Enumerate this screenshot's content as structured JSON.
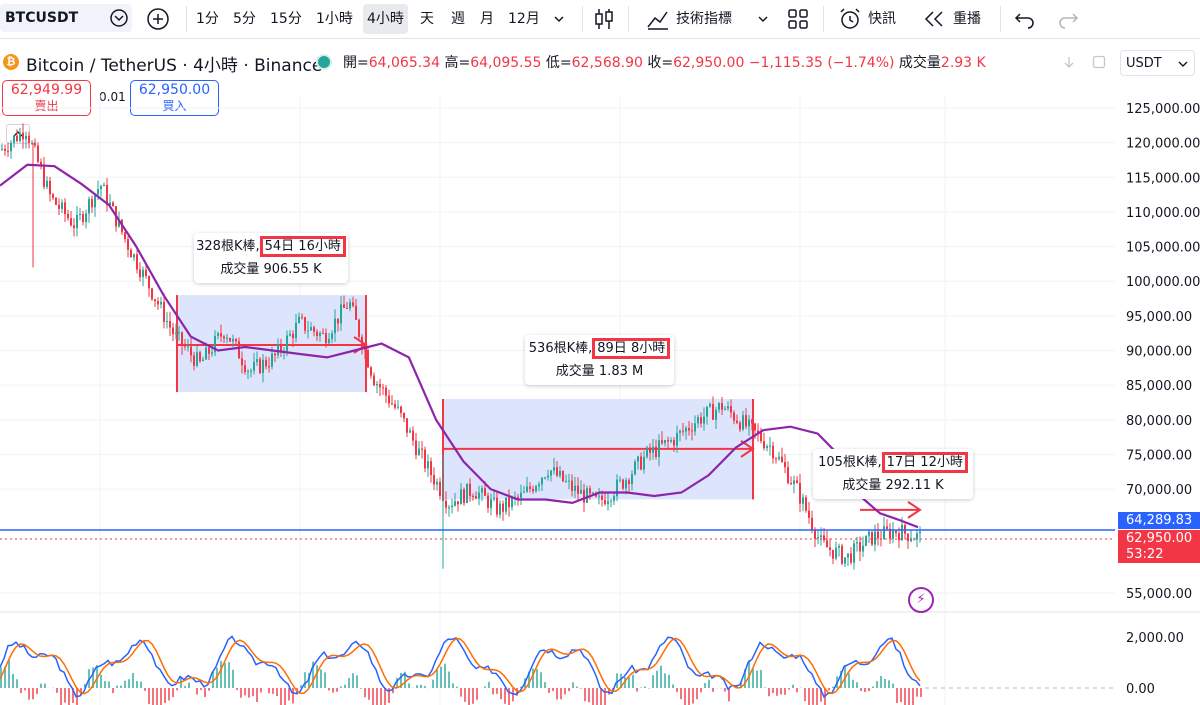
{
  "toolbar": {
    "symbol": "BTCUSDT",
    "intervals": [
      "1分",
      "5分",
      "15分",
      "1小時",
      "4小時",
      "天",
      "週",
      "月",
      "12月"
    ],
    "active_interval": "4小時",
    "indicators_label": "技術指標",
    "alert_label": "快訊",
    "replay_label": "重播"
  },
  "legend": {
    "title": "Bitcoin / TetherUS · 4小時 · Binance",
    "open_label": "開",
    "open": "64,065.34",
    "high_label": "高",
    "high": "64,095.55",
    "low_label": "低",
    "low": "62,568.90",
    "close_label": "收",
    "close": "62,950.00",
    "change": "−1,115.35 (−1.74%)",
    "volume_label": "成交量",
    "volume": "2.93 K"
  },
  "trade": {
    "sell_price": "62,949.99",
    "sell_label": "賣出",
    "spread": "0.01",
    "buy_price": "62,950.00",
    "buy_label": "買入"
  },
  "currency": "USDT",
  "price_tags": {
    "blue_line": "64,289.83",
    "last": "62,950.00",
    "countdown": "53:22"
  },
  "annotations": [
    {
      "bars_label": "328根K棒,",
      "duration": "54日 16小時",
      "volume": "成交量 906.55 K"
    },
    {
      "bars_label": "536根K棒,",
      "duration": "89日 8小時",
      "volume": "成交量 1.83 M"
    },
    {
      "bars_label": "105根K棒,",
      "duration": "17日 12小時",
      "volume": "成交量 292.11 K"
    }
  ],
  "colors": {
    "up": "#26a69a",
    "down": "#f23645",
    "ma": "#8e24aa",
    "range": "#d7e0fb",
    "blue_line": "#2962ff"
  },
  "chart_data": {
    "type": "line",
    "title": "Bitcoin / TetherUS · 4小時 · Binance",
    "y_ticks": [
      "125,000.00",
      "120,000.00",
      "115,000.00",
      "110,000.00",
      "105,000.00",
      "100,000.00",
      "95,000.00",
      "90,000.00",
      "85,000.00",
      "80,000.00",
      "75,000.00",
      "70,000.00",
      "55,000.00"
    ],
    "ylim": [
      53000,
      127000
    ],
    "lower_pane_ticks": [
      "2,000.00",
      "0.00"
    ],
    "series": [
      {
        "values": [
          119000,
          122000,
          112000,
          108000,
          114000,
          106000,
          99000,
          92000,
          88000,
          93000,
          87000,
          89000,
          94000,
          92000,
          97000,
          86000,
          81000,
          74000,
          68000,
          70000,
          67000,
          69000,
          73000,
          70000,
          68000,
          71000,
          75000,
          77000,
          80000,
          82000,
          79000,
          76000,
          70000,
          62000,
          60000,
          63000,
          64000,
          63000
        ]
      },
      {
        "values": [
          113800,
          116800,
          116600,
          114000,
          111000,
          105000,
          98000,
          92000,
          90000,
          90500,
          90000,
          89500,
          89000,
          90000,
          91000,
          89000,
          80000,
          74000,
          70000,
          68500,
          68500,
          68000,
          69500,
          69500,
          69000,
          69500,
          72000,
          76000,
          78500,
          79000,
          78000,
          74000
        ]
      }
    ]
  }
}
